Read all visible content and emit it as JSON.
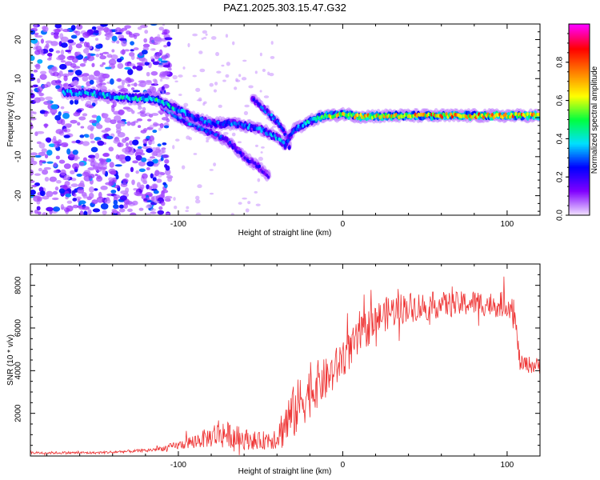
{
  "chart_data": [
    {
      "type": "heatmap",
      "title": "PAZ1.2025.303.15.47.G32",
      "xlabel": "Height of straight line (km)",
      "ylabel": "Frequency (Hz)",
      "xlim": [
        -190,
        120
      ],
      "ylim": [
        -25,
        24
      ],
      "x_ticks": [
        -100,
        0,
        100
      ],
      "x_tick_labels": [
        "-100",
        "0",
        "100"
      ],
      "y_ticks": [
        -20,
        -10,
        0,
        10,
        20
      ],
      "y_tick_labels": [
        "-20",
        "-10",
        "0",
        "10",
        "20"
      ],
      "colorbar": {
        "label": "Normalized spectral amplitude",
        "range": [
          0,
          1
        ],
        "ticks": [
          0.0,
          0.2,
          0.4,
          0.6,
          0.8
        ],
        "tick_labels": [
          "0.0",
          "0.2",
          "0.4",
          "0.6",
          "0.8"
        ],
        "colors": [
          "#f0e0ff",
          "#8000ff",
          "#0000ff",
          "#00e0ff",
          "#00ff40",
          "#ffff00",
          "#ff8000",
          "#ff0000",
          "#ff00ff"
        ]
      },
      "ridge_main": {
        "x": [
          -170,
          -150,
          -130,
          -115,
          -100,
          -90,
          -80,
          -70,
          -60,
          -50,
          -45,
          -40,
          -35,
          -30,
          -25,
          -20,
          -15,
          -10,
          -5,
          0,
          10,
          30,
          60,
          90,
          120
        ],
        "y": [
          6.5,
          6,
          5,
          5,
          2,
          0,
          -1.5,
          -1.5,
          -2,
          -3,
          -4,
          -5,
          -7,
          -3,
          -2,
          -1,
          0,
          0.5,
          0.5,
          1,
          0.3,
          0.5,
          0.5,
          0.5,
          0.5
        ],
        "amplitude": [
          0.35,
          0.35,
          0.4,
          0.45,
          0.35,
          0.3,
          0.3,
          0.3,
          0.3,
          0.3,
          0.3,
          0.35,
          0.3,
          0.3,
          0.35,
          0.4,
          0.5,
          0.55,
          0.6,
          0.6,
          0.65,
          0.65,
          0.7,
          0.7,
          0.65
        ]
      },
      "ridge_branch": {
        "x": [
          -110,
          -100,
          -90,
          -80,
          -70,
          -60,
          -50,
          -45
        ],
        "y": [
          3,
          0,
          -2,
          -4,
          -6,
          -10,
          -13,
          -15
        ],
        "amplitude": [
          0.3,
          0.3,
          0.3,
          0.25,
          0.25,
          0.2,
          0.2,
          0.15
        ]
      },
      "ridge_secondary": {
        "x": [
          -55,
          -50,
          -45,
          -40,
          -35,
          -32
        ],
        "y": [
          5,
          3,
          1,
          -1,
          -4,
          -8
        ],
        "amplitude": [
          0.2,
          0.25,
          0.3,
          0.3,
          0.3,
          0.25
        ]
      },
      "noise_region_x": [
        -190,
        -120
      ]
    },
    {
      "type": "line",
      "xlabel": "Height of straight line (km)",
      "ylabel": "SNR (10 * v/v)",
      "xlim": [
        -190,
        120
      ],
      "ylim": [
        0,
        9000
      ],
      "x_ticks": [
        -100,
        0,
        100
      ],
      "x_tick_labels": [
        "-100",
        "0",
        "100"
      ],
      "y_ticks": [
        2000,
        4000,
        6000,
        8000
      ],
      "y_tick_labels": [
        "2000",
        "4000",
        "6000",
        "8000"
      ],
      "line_color": "#ee3333",
      "series": [
        {
          "name": "SNR",
          "x": [
            -190,
            -150,
            -130,
            -120,
            -110,
            -100,
            -90,
            -80,
            -75,
            -70,
            -60,
            -50,
            -45,
            -40,
            -35,
            -30,
            -25,
            -20,
            -15,
            -10,
            -5,
            0,
            5,
            10,
            15,
            20,
            25,
            30,
            40,
            50,
            60,
            70,
            80,
            90,
            100,
            104,
            106,
            108,
            112,
            120
          ],
          "y": [
            150,
            150,
            220,
            250,
            350,
            500,
            700,
            900,
            1100,
            1000,
            800,
            700,
            800,
            900,
            1500,
            2000,
            2600,
            3000,
            3400,
            3600,
            4000,
            4600,
            5000,
            5500,
            6000,
            6400,
            6600,
            6800,
            7000,
            7000,
            7100,
            7100,
            7200,
            7100,
            7100,
            7000,
            5500,
            4300,
            4300,
            4200
          ],
          "noise_amp": [
            60,
            60,
            70,
            80,
            120,
            200,
            350,
            500,
            800,
            600,
            500,
            400,
            500,
            600,
            1200,
            1300,
            1300,
            1200,
            1100,
            1000,
            1000,
            900,
            900,
            900,
            900,
            800,
            800,
            800,
            700,
            700,
            600,
            600,
            600,
            600,
            600,
            600,
            600,
            400,
            400,
            400
          ]
        }
      ]
    }
  ]
}
